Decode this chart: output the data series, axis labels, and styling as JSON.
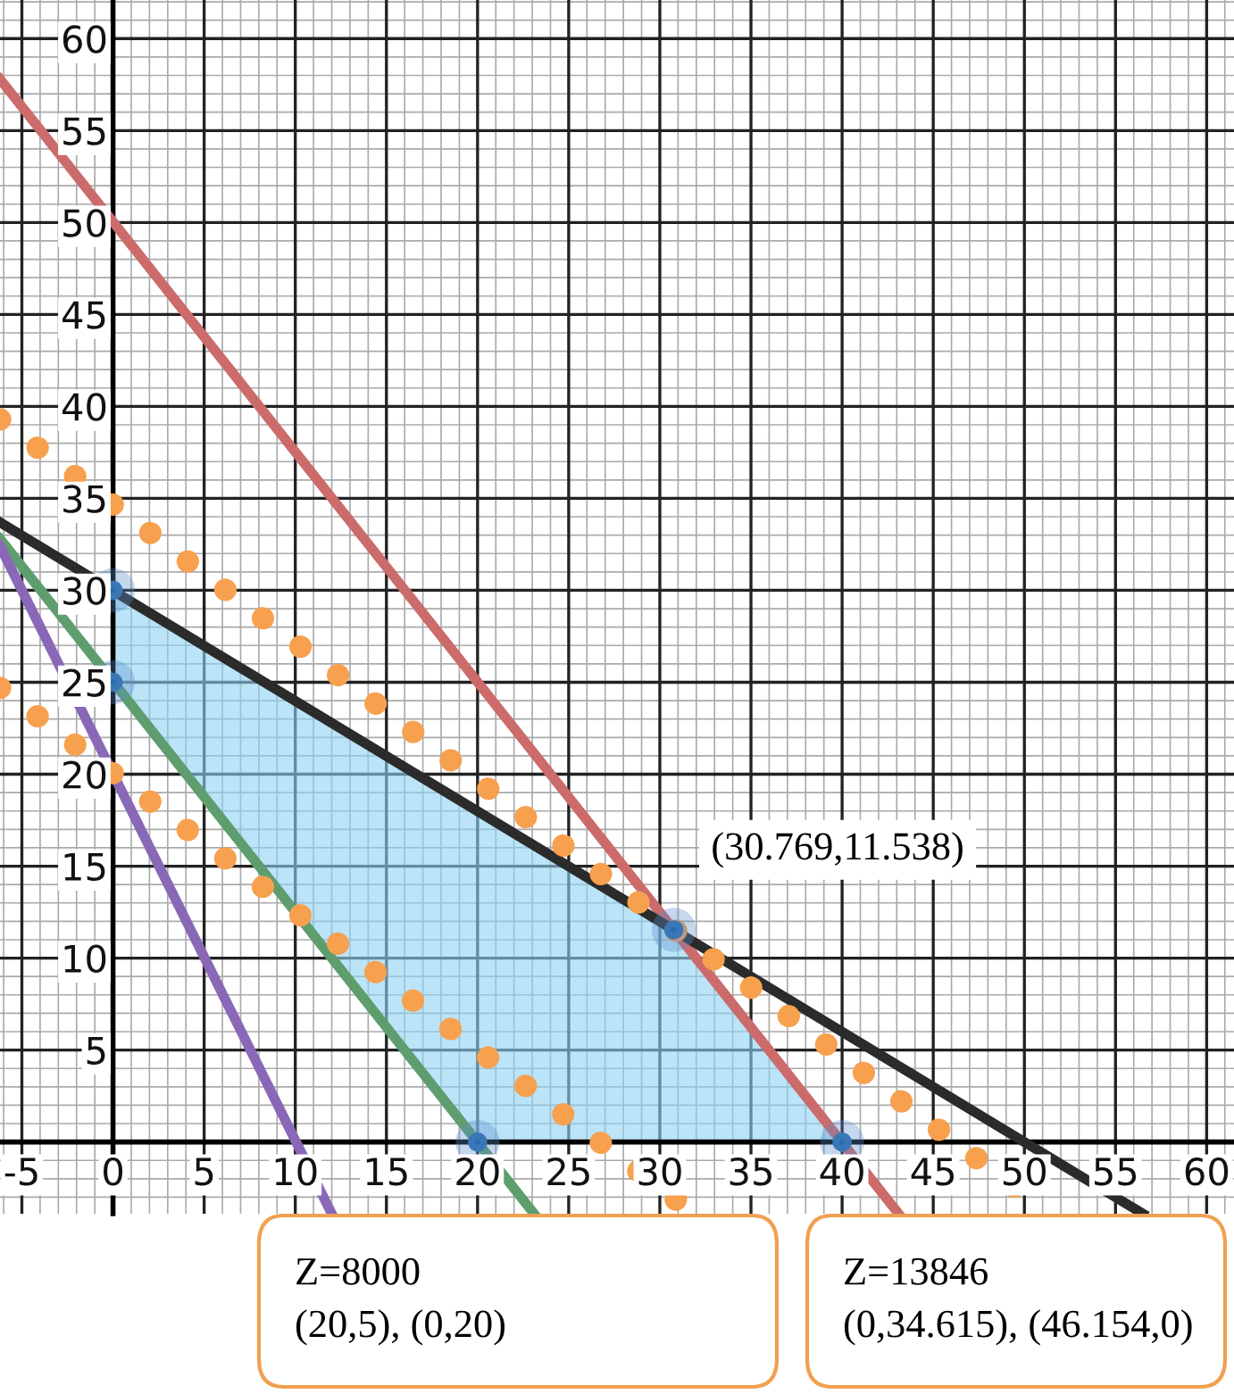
{
  "chart_data": {
    "type": "line",
    "xlim": [
      -6.2,
      61.5
    ],
    "ylim": [
      -3.9,
      62.1
    ],
    "xticks": [
      -5,
      0,
      5,
      10,
      15,
      20,
      25,
      30,
      35,
      40,
      45,
      50,
      55,
      60
    ],
    "yticks": [
      5,
      10,
      15,
      20,
      25,
      30,
      35,
      40,
      45,
      50,
      55,
      60
    ],
    "grid": true,
    "series": [
      {
        "type": "area",
        "color": "#8fd3f4",
        "x": [
          0,
          30.769,
          40,
          20,
          0
        ],
        "values": [
          30,
          11.538,
          0,
          0,
          25
        ]
      },
      {
        "color": "#cc6b6b",
        "line_style": "solid",
        "x": [
          -6.2,
          43.1
        ],
        "values": [
          57.8,
          -3.9
        ]
      },
      {
        "color": "#2b2b2b",
        "line_style": "solid",
        "x": [
          -6.2,
          56.5
        ],
        "values": [
          33.7,
          -3.9
        ]
      },
      {
        "color": "#5e9e6e",
        "line_style": "solid",
        "x": [
          -6.2,
          23.1
        ],
        "values": [
          32.8,
          -3.9
        ]
      },
      {
        "color": "#8a68b8",
        "line_style": "solid",
        "x": [
          -6.2,
          12
        ],
        "values": [
          32.4,
          -3.9
        ]
      },
      {
        "color": "#f7a04e",
        "line_style": "dotted",
        "x": [
          -6.2,
          31.9
        ],
        "values": [
          24.7,
          -3.9
        ]
      },
      {
        "color": "#f7a04e",
        "line_style": "dotted",
        "x": [
          -6.2,
          51.4
        ],
        "values": [
          39.3,
          -3.9
        ]
      },
      {
        "type": "scatter",
        "color": "#2a6cad",
        "marker": "circle",
        "x": [
          0,
          0,
          20,
          30.769,
          40
        ],
        "values": [
          30,
          25,
          0,
          11.538,
          0
        ]
      }
    ],
    "annotations": [
      {
        "text": "(30.769,11.538)",
        "x": 30.769,
        "y": 11.538
      },
      "Z=8000\n(20,5), (0,20)",
      "Z=13846\n(0,34.615), (46.154,0)"
    ]
  }
}
